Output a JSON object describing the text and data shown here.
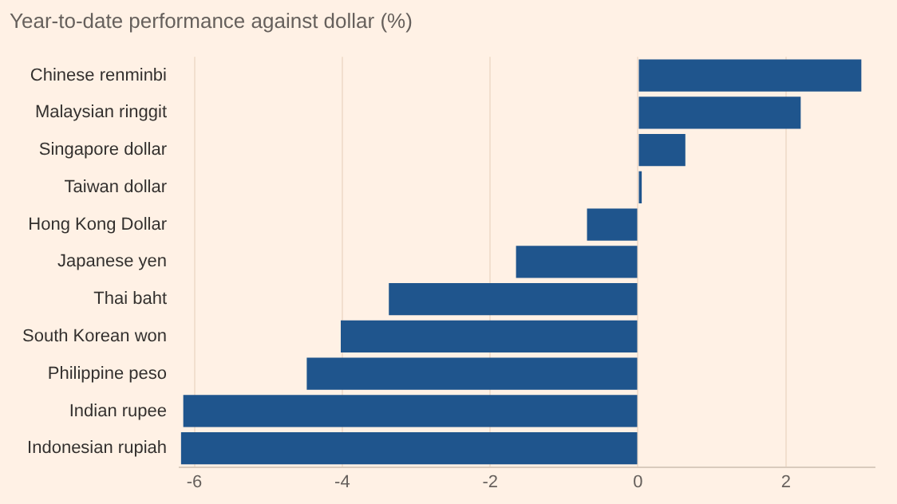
{
  "chart_data": {
    "type": "bar",
    "orientation": "horizontal",
    "title": "Year-to-date performance against dollar (%)",
    "categories": [
      "Chinese renminbi",
      "Malaysian ringgit",
      "Singapore dollar",
      "Taiwan dollar",
      "Hong Kong Dollar",
      "Japanese yen",
      "Thai baht",
      "South Korean won",
      "Philippine peso",
      "Indian rupee",
      "Indonesian rupiah"
    ],
    "values": [
      3.02,
      2.2,
      0.64,
      0.05,
      -0.69,
      -1.65,
      -3.37,
      -4.02,
      -4.48,
      -6.15,
      -6.18
    ],
    "color": "#1f558d",
    "xlim": [
      -6.2,
      3.2
    ],
    "xticks": [
      -6,
      -4,
      -2,
      0,
      2
    ],
    "grid": "x",
    "legend": false
  }
}
